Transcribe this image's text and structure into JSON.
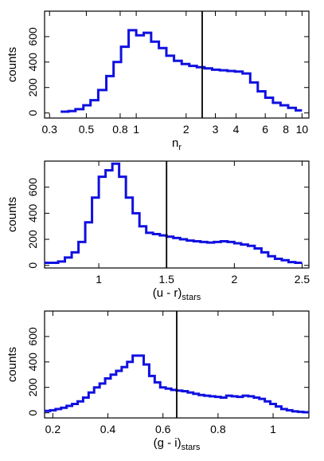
{
  "chart_data": [
    {
      "type": "histogram",
      "title": "",
      "xlabel": "n",
      "xlabel_sub": "r",
      "ylabel": "counts",
      "xscale": "log",
      "xlim": [
        0.28,
        11
      ],
      "ylim": [
        -40,
        800
      ],
      "xticks": [
        0.3,
        0.5,
        0.8,
        1,
        2,
        3,
        4,
        6,
        8,
        10
      ],
      "xtick_labels": [
        "0.3",
        "0.5",
        "0.8",
        "1",
        "2",
        "3",
        "4",
        "6",
        "8",
        "10"
      ],
      "yticks": [
        0,
        200,
        400,
        600
      ],
      "ytick_labels": [
        "0",
        "200",
        "400",
        "600"
      ],
      "vline": 2.5,
      "color": "#1010e0",
      "bin_edges": [
        0.35,
        0.39,
        0.43,
        0.48,
        0.53,
        0.59,
        0.66,
        0.73,
        0.81,
        0.9,
        1.0,
        1.11,
        1.23,
        1.37,
        1.52,
        1.69,
        1.88,
        2.09,
        2.32,
        2.58,
        2.87,
        3.19,
        3.55,
        3.94,
        4.38,
        4.87,
        5.41,
        6.01,
        6.68,
        7.42,
        8.25,
        9.17,
        10.0
      ],
      "counts": [
        10,
        15,
        30,
        60,
        100,
        180,
        290,
        400,
        520,
        650,
        610,
        630,
        560,
        510,
        450,
        410,
        385,
        370,
        360,
        350,
        340,
        335,
        330,
        325,
        310,
        240,
        170,
        120,
        80,
        60,
        40,
        20
      ]
    },
    {
      "type": "histogram",
      "title": "",
      "xlabel": "(u - r)",
      "xlabel_sub": "stars",
      "ylabel": "counts",
      "xscale": "linear",
      "xlim": [
        0.6,
        2.55
      ],
      "ylim": [
        -20,
        800
      ],
      "xticks": [
        1,
        1.5,
        2,
        2.5
      ],
      "xtick_labels": [
        "1",
        "1.5",
        "2",
        "2.5"
      ],
      "yticks": [
        0,
        200,
        400,
        600
      ],
      "ytick_labels": [
        "0",
        "200",
        "400",
        "600"
      ],
      "vline": 1.5,
      "color": "#1010e0",
      "bin_edges": [
        0.6,
        0.65,
        0.7,
        0.75,
        0.8,
        0.85,
        0.9,
        0.95,
        1.0,
        1.05,
        1.1,
        1.15,
        1.2,
        1.25,
        1.3,
        1.35,
        1.4,
        1.45,
        1.5,
        1.55,
        1.6,
        1.65,
        1.7,
        1.75,
        1.8,
        1.85,
        1.9,
        1.95,
        2.0,
        2.05,
        2.1,
        2.15,
        2.2,
        2.25,
        2.3,
        2.35,
        2.4,
        2.45,
        2.5
      ],
      "counts": [
        20,
        20,
        30,
        60,
        100,
        180,
        330,
        520,
        680,
        730,
        780,
        680,
        520,
        400,
        300,
        250,
        240,
        230,
        220,
        210,
        200,
        190,
        185,
        180,
        175,
        180,
        185,
        180,
        170,
        160,
        150,
        130,
        100,
        70,
        50,
        40,
        25,
        20
      ]
    },
    {
      "type": "histogram",
      "title": "",
      "xlabel": "(g - i)",
      "xlabel_sub": "stars",
      "ylabel": "counts",
      "xscale": "linear",
      "xlim": [
        0.17,
        1.13
      ],
      "ylim": [
        -40,
        800
      ],
      "xticks": [
        0.2,
        0.4,
        0.6,
        0.8,
        1
      ],
      "xtick_labels": [
        "0.2",
        "0.4",
        "0.6",
        "0.8",
        "1"
      ],
      "yticks": [
        0,
        200,
        400,
        600
      ],
      "ytick_labels": [
        "0",
        "200",
        "400",
        "600"
      ],
      "vline": 0.65,
      "color": "#1010e0",
      "bin_edges": [
        0.17,
        0.19,
        0.21,
        0.23,
        0.25,
        0.27,
        0.29,
        0.31,
        0.33,
        0.35,
        0.37,
        0.39,
        0.41,
        0.43,
        0.45,
        0.47,
        0.49,
        0.51,
        0.53,
        0.55,
        0.57,
        0.59,
        0.61,
        0.63,
        0.65,
        0.67,
        0.69,
        0.71,
        0.73,
        0.75,
        0.77,
        0.79,
        0.81,
        0.83,
        0.85,
        0.87,
        0.89,
        0.91,
        0.93,
        0.95,
        0.97,
        0.99,
        1.01,
        1.03,
        1.05,
        1.07,
        1.09,
        1.11,
        1.13
      ],
      "counts": [
        15,
        20,
        30,
        40,
        55,
        70,
        90,
        120,
        160,
        200,
        230,
        270,
        300,
        330,
        360,
        400,
        450,
        450,
        380,
        290,
        240,
        200,
        190,
        180,
        175,
        170,
        160,
        150,
        140,
        135,
        130,
        125,
        120,
        135,
        130,
        125,
        135,
        130,
        120,
        110,
        90,
        70,
        50,
        30,
        20,
        12,
        8,
        5
      ]
    }
  ]
}
